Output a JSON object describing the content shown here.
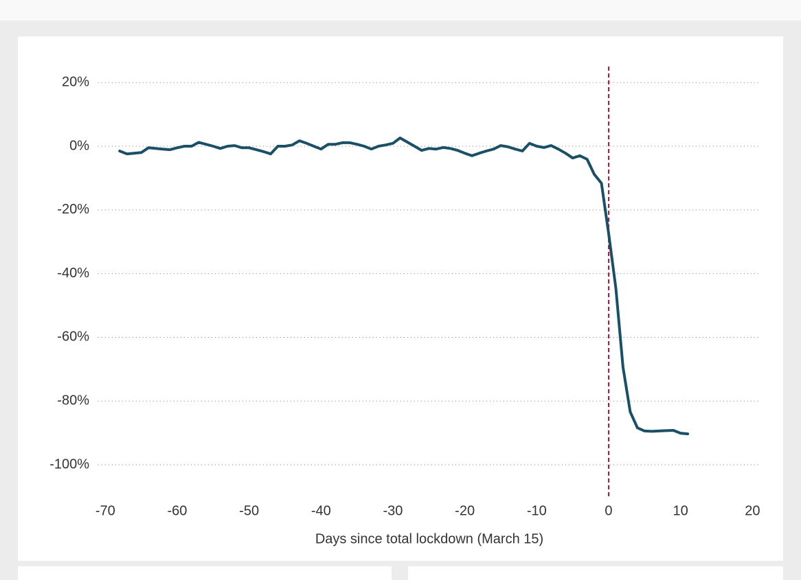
{
  "chart_data": {
    "type": "line",
    "x_label": "Days since total lockdown (March 15)",
    "x": [
      -68,
      -67,
      -66,
      -65,
      -64,
      -63,
      -62,
      -61,
      -60,
      -59,
      -58,
      -57,
      -56,
      -55,
      -54,
      -53,
      -52,
      -51,
      -50,
      -49,
      -48,
      -47,
      -46,
      -45,
      -44,
      -43,
      -42,
      -41,
      -40,
      -39,
      -38,
      -37,
      -36,
      -35,
      -34,
      -33,
      -32,
      -31,
      -30,
      -29,
      -28,
      -27,
      -26,
      -25,
      -24,
      -23,
      -22,
      -21,
      -20,
      -19,
      -18,
      -17,
      -16,
      -15,
      -14,
      -13,
      -12,
      -11,
      -10,
      -9,
      -8,
      -7,
      -6,
      -5,
      -4,
      -3,
      -2,
      -1,
      0,
      1,
      2,
      3,
      4,
      5,
      6,
      7,
      8,
      9,
      10,
      11
    ],
    "series": [
      {
        "color": "#1a4f68",
        "values": [
          -1.5,
          -2.4,
          -2.2,
          -2,
          -0.5,
          -0.7,
          -0.9,
          -1.1,
          -0.5,
          0,
          0,
          1.2,
          0.6,
          0,
          -0.7,
          0,
          0.2,
          -0.5,
          -0.5,
          -1.1,
          -1.7,
          -2.4,
          0,
          0,
          0.4,
          1.7,
          0.9,
          0,
          -0.9,
          0.6,
          0.6,
          1.1,
          1.1,
          0.6,
          0,
          -0.9,
          0,
          0.4,
          0.9,
          2.6,
          1.3,
          0,
          -1.3,
          -0.7,
          -0.9,
          -0.4,
          -0.7,
          -1.3,
          -2.2,
          -3.0,
          -2.2,
          -1.5,
          -0.9,
          0.2,
          -0.2,
          -0.9,
          -1.5,
          0.9,
          0,
          -0.4,
          0.2,
          -0.9,
          -2.2,
          -3.7,
          -3.0,
          -4.1,
          -8.8,
          -11.6,
          -27.4,
          -44.6,
          -69.4,
          -83.4,
          -88.4,
          -89.4,
          -89.5,
          -89.4,
          -89.3,
          -89.2,
          -90.1,
          -90.3
        ]
      }
    ],
    "vline": {
      "x": 0,
      "color": "#c8102e"
    },
    "xlim": [
      -71,
      21
    ],
    "xticks": [
      -70,
      -60,
      -50,
      -40,
      -30,
      -20,
      -10,
      0,
      10,
      20
    ],
    "ylim": [
      -110,
      25
    ],
    "yticks": [
      {
        "value": 20,
        "label": "20%"
      },
      {
        "value": 0,
        "label": "0%"
      },
      {
        "value": -20,
        "label": "-20%"
      },
      {
        "value": -40,
        "label": "-40%"
      },
      {
        "value": -60,
        "label": "-60%"
      },
      {
        "value": -80,
        "label": "-80%"
      },
      {
        "value": -100,
        "label": "-100%"
      }
    ],
    "grid": true
  }
}
